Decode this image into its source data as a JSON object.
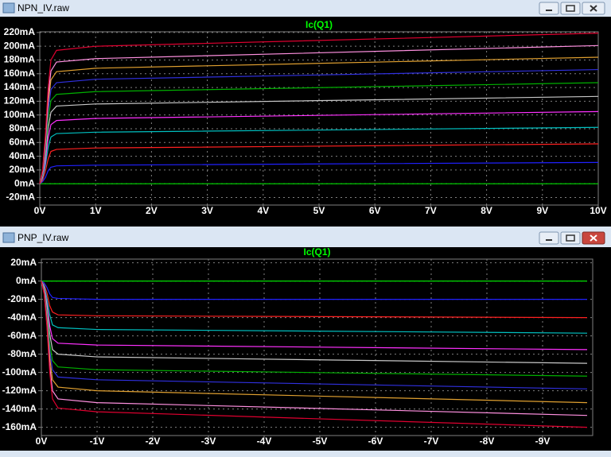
{
  "windows": [
    {
      "title": "NPN_IV.raw"
    },
    {
      "title": "PNP_IV.raw"
    }
  ],
  "chart_data": [
    {
      "type": "line",
      "title": "Ic(Q1)",
      "grid": true,
      "x": [
        0,
        0.05,
        0.1,
        0.15,
        0.2,
        0.3,
        1,
        10
      ],
      "xlim": [
        0,
        10
      ],
      "xticks": [
        {
          "value": 0,
          "label": "0V"
        },
        {
          "value": 1,
          "label": "1V"
        },
        {
          "value": 2,
          "label": "2V"
        },
        {
          "value": 3,
          "label": "3V"
        },
        {
          "value": 4,
          "label": "4V"
        },
        {
          "value": 5,
          "label": "5V"
        },
        {
          "value": 6,
          "label": "6V"
        },
        {
          "value": 7,
          "label": "7V"
        },
        {
          "value": 8,
          "label": "8V"
        },
        {
          "value": 9,
          "label": "9V"
        },
        {
          "value": 10,
          "label": "10V"
        }
      ],
      "ylim": [
        -31,
        221
      ],
      "yticks": [
        {
          "value": 220,
          "label": "220mA"
        },
        {
          "value": 200,
          "label": "200mA"
        },
        {
          "value": 180,
          "label": "180mA"
        },
        {
          "value": 160,
          "label": "160mA"
        },
        {
          "value": 140,
          "label": "140mA"
        },
        {
          "value": 120,
          "label": "120mA"
        },
        {
          "value": 100,
          "label": "100mA"
        },
        {
          "value": 80,
          "label": "80mA"
        },
        {
          "value": 60,
          "label": "60mA"
        },
        {
          "value": 40,
          "label": "40mA"
        },
        {
          "value": 20,
          "label": "20mA"
        },
        {
          "value": 0,
          "label": "0mA"
        },
        {
          "value": -20,
          "label": "-20mA"
        }
      ],
      "series": [
        {
          "color": "#00e000",
          "values": [
            0,
            0,
            0,
            0,
            0,
            0,
            0,
            0
          ]
        },
        {
          "color": "#2020ff",
          "values": [
            0,
            3,
            9,
            19,
            24,
            26,
            27,
            31
          ]
        },
        {
          "color": "#ff2020",
          "values": [
            0,
            5,
            18,
            36,
            47,
            50,
            52,
            58
          ]
        },
        {
          "color": "#00c0c0",
          "values": [
            0,
            8,
            26,
            53,
            68,
            73,
            75,
            82
          ]
        },
        {
          "color": "#ff30ff",
          "values": [
            0,
            10,
            33,
            67,
            86,
            92,
            95,
            105
          ]
        },
        {
          "color": "#c8c8c8",
          "values": [
            0,
            12,
            41,
            81,
            104,
            113,
            116,
            127
          ]
        },
        {
          "color": "#00b000",
          "values": [
            0,
            13,
            47,
            94,
            121,
            130,
            134,
            147
          ]
        },
        {
          "color": "#3030e0",
          "values": [
            0,
            15,
            53,
            106,
            137,
            147,
            152,
            166
          ]
        },
        {
          "color": "#e0a030",
          "values": [
            0,
            17,
            59,
            118,
            151,
            163,
            168,
            184
          ]
        },
        {
          "color": "#ff90e0",
          "values": [
            0,
            18,
            64,
            127,
            164,
            177,
            182,
            201
          ]
        },
        {
          "color": "#e00030",
          "values": [
            0,
            20,
            70,
            140,
            180,
            194,
            200,
            219
          ]
        }
      ]
    },
    {
      "type": "line",
      "title": "Ic(Q1)",
      "grid": true,
      "x": [
        0,
        -0.05,
        -0.1,
        -0.15,
        -0.2,
        -0.3,
        -1,
        -9.8
      ],
      "xlim": [
        0,
        -9.9
      ],
      "xticks": [
        {
          "value": 0,
          "label": "0V"
        },
        {
          "value": -1,
          "label": "-1V"
        },
        {
          "value": -2,
          "label": "-2V"
        },
        {
          "value": -3,
          "label": "-3V"
        },
        {
          "value": -4,
          "label": "-4V"
        },
        {
          "value": -5,
          "label": "-5V"
        },
        {
          "value": -6,
          "label": "-6V"
        },
        {
          "value": -7,
          "label": "-7V"
        },
        {
          "value": -8,
          "label": "-8V"
        },
        {
          "value": -9,
          "label": "-9V"
        }
      ],
      "ylim": [
        -169,
        24
      ],
      "yticks": [
        {
          "value": 20,
          "label": "20mA"
        },
        {
          "value": 0,
          "label": "0mA"
        },
        {
          "value": -20,
          "label": "-20mA"
        },
        {
          "value": -40,
          "label": "-40mA"
        },
        {
          "value": -60,
          "label": "-60mA"
        },
        {
          "value": -80,
          "label": "-80mA"
        },
        {
          "value": -100,
          "label": "-100mA"
        },
        {
          "value": -120,
          "label": "-120mA"
        },
        {
          "value": -140,
          "label": "-140mA"
        },
        {
          "value": -160,
          "label": "-160mA"
        }
      ],
      "series": [
        {
          "color": "#00e000",
          "values": [
            0,
            0,
            0,
            0,
            0,
            0,
            0,
            0
          ]
        },
        {
          "color": "#2020ff",
          "values": [
            0,
            -2,
            -7,
            -14,
            -18,
            -19,
            -20,
            -20
          ]
        },
        {
          "color": "#ff2020",
          "values": [
            0,
            -4,
            -13,
            -27,
            -34,
            -37,
            -38,
            -40
          ]
        },
        {
          "color": "#00c0c0",
          "values": [
            0,
            -5,
            -19,
            -37,
            -48,
            -51,
            -53,
            -57
          ]
        },
        {
          "color": "#ff30ff",
          "values": [
            0,
            -7,
            -25,
            -49,
            -63,
            -68,
            -70,
            -75
          ]
        },
        {
          "color": "#c8c8c8",
          "values": [
            0,
            -8,
            -29,
            -58,
            -75,
            -80,
            -83,
            -90
          ]
        },
        {
          "color": "#00b000",
          "values": [
            0,
            -10,
            -34,
            -68,
            -87,
            -94,
            -97,
            -104
          ]
        },
        {
          "color": "#3030e0",
          "values": [
            0,
            -11,
            -38,
            -76,
            -97,
            -105,
            -108,
            -118
          ]
        },
        {
          "color": "#e0a030",
          "values": [
            0,
            -12,
            -42,
            -84,
            -108,
            -116,
            -120,
            -133
          ]
        },
        {
          "color": "#ff90e0",
          "values": [
            0,
            -13,
            -47,
            -93,
            -120,
            -129,
            -133,
            -147
          ]
        },
        {
          "color": "#e00030",
          "values": [
            0,
            -14,
            -50,
            -100,
            -129,
            -139,
            -143,
            -160
          ]
        }
      ]
    }
  ]
}
